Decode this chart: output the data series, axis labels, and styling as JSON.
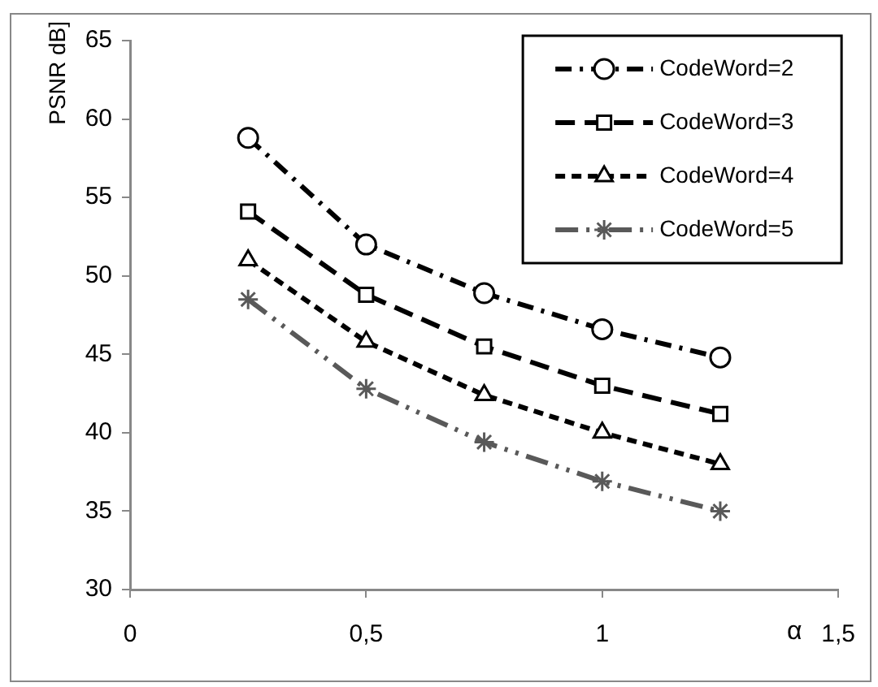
{
  "chart_data": {
    "type": "line",
    "ylabel": "PSNR dB]",
    "xlabel": "α",
    "x": [
      0.25,
      0.5,
      0.75,
      1,
      1.25
    ],
    "series": [
      {
        "name": "CodeWord=2",
        "color": "#000000",
        "marker": "circle",
        "line_style": "dashed",
        "values": [
          58.8,
          52.0,
          48.9,
          46.6,
          44.8
        ]
      },
      {
        "name": "CodeWord=3",
        "color": "#000000",
        "marker": "square",
        "line_style": "dashed",
        "values": [
          54.1,
          48.8,
          45.5,
          43.0,
          41.2
        ]
      },
      {
        "name": "CodeWord=4",
        "color": "#000000",
        "marker": "triangle",
        "line_style": "dashed",
        "values": [
          51.0,
          45.8,
          42.4,
          40.0,
          38.0
        ]
      },
      {
        "name": "CodeWord=5",
        "color": "#595959",
        "marker": "cross",
        "line_style": "dashed",
        "values": [
          48.5,
          42.8,
          39.4,
          36.9,
          35.0
        ]
      }
    ],
    "xlim": [
      0,
      1.5
    ],
    "xticks": [
      0,
      {
        "value": 0.5,
        "label": "0,5"
      },
      1,
      {
        "value": 1.5,
        "label": "1,5"
      }
    ],
    "ylim": [
      30,
      65
    ],
    "yticks": [
      30,
      35,
      40,
      45,
      50,
      55,
      60,
      65
    ],
    "grid": false,
    "legend": "top right"
  }
}
